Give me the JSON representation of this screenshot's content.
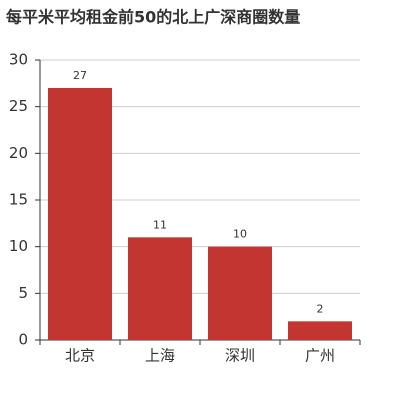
{
  "chart_data": {
    "type": "bar",
    "title": "每平米平均租金前50的北上广深商圈数量",
    "categories": [
      "北京",
      "上海",
      "深圳",
      "广州"
    ],
    "values": [
      27,
      11,
      10,
      2
    ],
    "color": "#c23531",
    "ylim": [
      0,
      30
    ],
    "yticks": [
      0,
      5,
      10,
      15,
      20,
      25,
      30
    ],
    "grid": true
  }
}
